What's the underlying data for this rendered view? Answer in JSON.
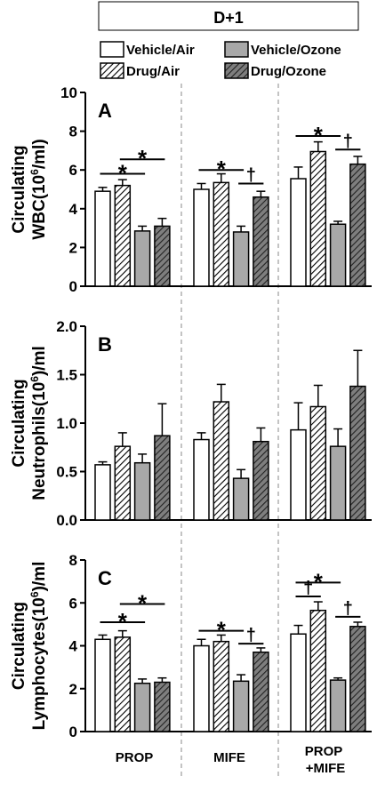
{
  "figure": {
    "header": "D+1",
    "groups": [
      "PROP",
      "MIFE",
      "PROP\n+MIFE"
    ],
    "legend": [
      {
        "name": "Vehicle/Air",
        "fill": "white",
        "hatch": false
      },
      {
        "name": "Vehicle/Ozone",
        "fill": "gray",
        "hatch": false
      },
      {
        "name": "Drug/Air",
        "fill": "white",
        "hatch": true
      },
      {
        "name": "Drug/Ozone",
        "fill": "darkgray",
        "hatch": true
      }
    ]
  },
  "colors": {
    "white_bar": "#ffffff",
    "gray_bar": "#a8a8a8",
    "dark_hatch_bg": "#7e7e7e",
    "stroke": "#000000",
    "divider": "#888888"
  },
  "chart_data": [
    {
      "type": "bar",
      "panel_letter": "A",
      "ylabel_line1": "Circulating",
      "ylabel_line2": "WBC(10",
      "ylabel_sup": "6",
      "ylabel_tail": "/ml)",
      "ylim": [
        0,
        10
      ],
      "yticks": [
        0,
        2,
        4,
        6,
        8,
        10
      ],
      "ytick_labels": [
        "0",
        "2",
        "4",
        "6",
        "8",
        "10"
      ],
      "categories": [
        "PROP",
        "MIFE",
        "PROP\n+MIFE"
      ],
      "series": [
        {
          "name": "Vehicle/Air",
          "values": [
            4.9,
            5.0,
            5.55
          ],
          "errors": [
            0.2,
            0.3,
            0.6
          ]
        },
        {
          "name": "Drug/Air",
          "values": [
            5.2,
            5.35,
            6.95
          ],
          "errors": [
            0.3,
            0.45,
            0.5
          ]
        },
        {
          "name": "Vehicle/Ozone",
          "values": [
            2.85,
            2.8,
            3.2
          ],
          "errors": [
            0.25,
            0.3,
            0.15
          ]
        },
        {
          "name": "Drug/Ozone",
          "values": [
            3.1,
            4.6,
            6.3
          ],
          "errors": [
            0.4,
            0.3,
            0.4
          ]
        }
      ],
      "annotations": [
        {
          "symbol": "*",
          "group": 0,
          "from": 0,
          "to": 2,
          "y": 5.8
        },
        {
          "symbol": "*",
          "group": 0,
          "from": 1,
          "to": 3,
          "y": 6.55
        },
        {
          "symbol": "*",
          "group": 1,
          "from": 0,
          "to": 2,
          "y": 6.0
        },
        {
          "symbol": "†",
          "group": 1,
          "from": 2,
          "to": 3,
          "y": 5.3
        },
        {
          "symbol": "*",
          "group": 2,
          "from": 0,
          "to": 2,
          "y": 7.75
        },
        {
          "symbol": "†",
          "group": 2,
          "from": 2,
          "to": 3,
          "y": 7.05
        }
      ]
    },
    {
      "type": "bar",
      "panel_letter": "B",
      "ylabel_line1": "Circulating",
      "ylabel_line2": "Neutrophils(10",
      "ylabel_sup": "6",
      "ylabel_tail": ")/ml",
      "ylim": [
        0,
        2.0
      ],
      "yticks": [
        0,
        0.5,
        1.0,
        1.5,
        2.0
      ],
      "ytick_labels": [
        "0.0",
        "0.5",
        "1.0",
        "1.5",
        "2.0"
      ],
      "categories": [
        "PROP",
        "MIFE",
        "PROP\n+MIFE"
      ],
      "series": [
        {
          "name": "Vehicle/Air",
          "values": [
            0.57,
            0.83,
            0.93
          ],
          "errors": [
            0.03,
            0.07,
            0.28
          ]
        },
        {
          "name": "Drug/Air",
          "values": [
            0.76,
            1.22,
            1.17
          ],
          "errors": [
            0.14,
            0.18,
            0.22
          ]
        },
        {
          "name": "Vehicle/Ozone",
          "values": [
            0.59,
            0.43,
            0.76
          ],
          "errors": [
            0.09,
            0.09,
            0.18
          ]
        },
        {
          "name": "Drug/Ozone",
          "values": [
            0.87,
            0.81,
            1.38
          ],
          "errors": [
            0.33,
            0.14,
            0.37
          ]
        }
      ],
      "annotations": []
    },
    {
      "type": "bar",
      "panel_letter": "C",
      "ylabel_line1": "Circulating",
      "ylabel_line2": "Lymphocytes(10",
      "ylabel_sup": "6",
      "ylabel_tail": ")/ml",
      "ylim": [
        0,
        8
      ],
      "yticks": [
        0,
        2,
        4,
        6,
        8
      ],
      "ytick_labels": [
        "0",
        "2",
        "4",
        "6",
        "8"
      ],
      "categories": [
        "PROP",
        "MIFE",
        "PROP\n+MIFE"
      ],
      "series": [
        {
          "name": "Vehicle/Air",
          "values": [
            4.3,
            4.0,
            4.55
          ],
          "errors": [
            0.2,
            0.3,
            0.4
          ]
        },
        {
          "name": "Drug/Air",
          "values": [
            4.4,
            4.2,
            5.65
          ],
          "errors": [
            0.3,
            0.3,
            0.4
          ]
        },
        {
          "name": "Vehicle/Ozone",
          "values": [
            2.25,
            2.35,
            2.4
          ],
          "errors": [
            0.2,
            0.3,
            0.1
          ]
        },
        {
          "name": "Drug/Ozone",
          "values": [
            2.3,
            3.7,
            4.9
          ],
          "errors": [
            0.2,
            0.2,
            0.2
          ]
        }
      ],
      "annotations": [
        {
          "symbol": "*",
          "group": 0,
          "from": 0,
          "to": 2,
          "y": 5.1
        },
        {
          "symbol": "*",
          "group": 0,
          "from": 1,
          "to": 3,
          "y": 5.95
        },
        {
          "symbol": "*",
          "group": 1,
          "from": 0,
          "to": 2,
          "y": 4.7
        },
        {
          "symbol": "†",
          "group": 1,
          "from": 2,
          "to": 3,
          "y": 4.1
        },
        {
          "symbol": "†",
          "group": 2,
          "from": 0,
          "to": 1,
          "y": 6.3
        },
        {
          "symbol": "*",
          "group": 2,
          "from": 0,
          "to": 2,
          "y": 6.95
        },
        {
          "symbol": "†",
          "group": 2,
          "from": 2,
          "to": 3,
          "y": 5.35
        }
      ]
    }
  ]
}
